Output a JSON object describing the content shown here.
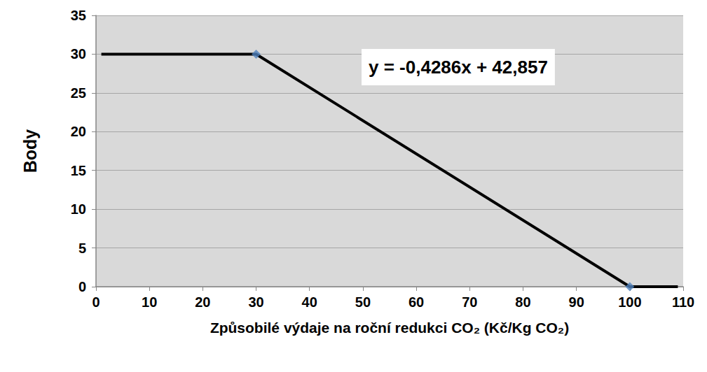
{
  "chart_data": {
    "type": "line",
    "x_label": "Způsobilé výdaje na roční redukci CO₂ (Kč/Kg CO₂)",
    "y_label": "Body",
    "xlim": [
      0,
      110
    ],
    "xticks": [
      0,
      10,
      20,
      30,
      40,
      50,
      60,
      70,
      80,
      90,
      100,
      110
    ],
    "ylim": [
      0,
      35
    ],
    "yticks": [
      0,
      5,
      10,
      15,
      20,
      25,
      30,
      35
    ],
    "grid": true,
    "annotations": [
      {
        "text": "y = -0,4286x + 42,857"
      }
    ],
    "series": [
      {
        "type": "line",
        "color": "#000000",
        "line_style": "solid",
        "x": [
          1,
          30,
          100,
          109
        ],
        "values": [
          30,
          30,
          0,
          0
        ]
      },
      {
        "type": "scatter",
        "color": "#4f81bd",
        "marker": "diamond",
        "x": [
          30,
          100
        ],
        "values": [
          30,
          0
        ]
      }
    ]
  }
}
